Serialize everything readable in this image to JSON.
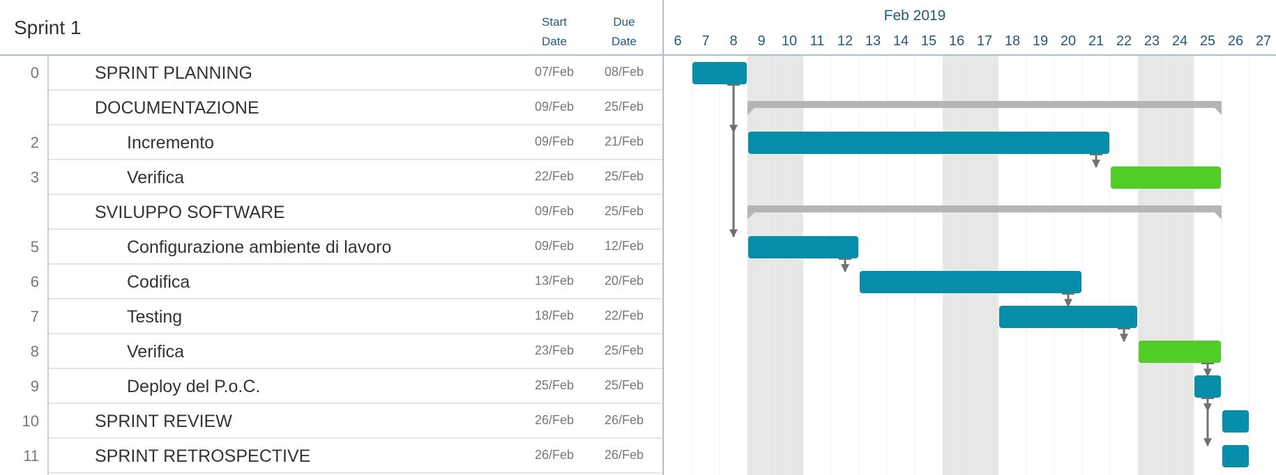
{
  "sprint": {
    "title": "Sprint 1"
  },
  "columns": {
    "start": [
      "Start",
      "Date"
    ],
    "due": [
      "Due",
      "Date"
    ]
  },
  "timeline": {
    "month_label": "Feb 2019",
    "first_day": 6,
    "last_day": 27,
    "weekend_days": [
      9,
      10,
      16,
      17,
      23,
      24
    ]
  },
  "tasks": [
    {
      "num": "0",
      "name": "SPRINT PLANNING",
      "start": "07/Feb",
      "due": "08/Feb",
      "level": 1
    },
    {
      "num": "",
      "name": "DOCUMENTAZIONE",
      "start": "09/Feb",
      "due": "25/Feb",
      "level": 1
    },
    {
      "num": "2",
      "name": "Incremento",
      "start": "09/Feb",
      "due": "21/Feb",
      "level": 2
    },
    {
      "num": "3",
      "name": "Verifica",
      "start": "22/Feb",
      "due": "25/Feb",
      "level": 2
    },
    {
      "num": "",
      "name": "SVILUPPO SOFTWARE",
      "start": "09/Feb",
      "due": "25/Feb",
      "level": 1
    },
    {
      "num": "5",
      "name": "Configurazione ambiente di lavoro",
      "start": "09/Feb",
      "due": "12/Feb",
      "level": 2
    },
    {
      "num": "6",
      "name": "Codifica",
      "start": "13/Feb",
      "due": "20/Feb",
      "level": 2
    },
    {
      "num": "7",
      "name": "Testing",
      "start": "18/Feb",
      "due": "22/Feb",
      "level": 2
    },
    {
      "num": "8",
      "name": "Verifica",
      "start": "23/Feb",
      "due": "25/Feb",
      "level": 2
    },
    {
      "num": "9",
      "name": "Deploy del P.o.C.",
      "start": "25/Feb",
      "due": "25/Feb",
      "level": 2
    },
    {
      "num": "10",
      "name": "SPRINT REVIEW",
      "start": "26/Feb",
      "due": "26/Feb",
      "level": 1
    },
    {
      "num": "11",
      "name": "SPRINT RETROSPECTIVE",
      "start": "26/Feb",
      "due": "26/Feb",
      "level": 1
    }
  ],
  "chart_data": {
    "type": "gantt",
    "categories": [
      "SPRINT PLANNING",
      "DOCUMENTAZIONE",
      "Incremento",
      "Verifica",
      "SVILUPPO SOFTWARE",
      "Configurazione ambiente di lavoro",
      "Codifica",
      "Testing",
      "Verifica",
      "Deploy del P.o.C.",
      "SPRINT REVIEW",
      "SPRINT RETROSPECTIVE"
    ],
    "bars": [
      {
        "row": 0,
        "start_day": 7,
        "end_day": 8,
        "kind": "task"
      },
      {
        "row": 1,
        "start_day": 9,
        "end_day": 25,
        "kind": "group"
      },
      {
        "row": 2,
        "start_day": 9,
        "end_day": 21,
        "kind": "task"
      },
      {
        "row": 3,
        "start_day": 22,
        "end_day": 25,
        "kind": "review"
      },
      {
        "row": 4,
        "start_day": 9,
        "end_day": 25,
        "kind": "group"
      },
      {
        "row": 5,
        "start_day": 9,
        "end_day": 12,
        "kind": "task"
      },
      {
        "row": 6,
        "start_day": 13,
        "end_day": 20,
        "kind": "task"
      },
      {
        "row": 7,
        "start_day": 18,
        "end_day": 22,
        "kind": "task"
      },
      {
        "row": 8,
        "start_day": 23,
        "end_day": 25,
        "kind": "review"
      },
      {
        "row": 9,
        "start_day": 25,
        "end_day": 25,
        "kind": "task"
      },
      {
        "row": 10,
        "start_day": 26,
        "end_day": 26,
        "kind": "task"
      },
      {
        "row": 11,
        "start_day": 26,
        "end_day": 26,
        "kind": "task"
      }
    ],
    "dependencies": [
      [
        0,
        2
      ],
      [
        0,
        5
      ],
      [
        2,
        3
      ],
      [
        5,
        6
      ],
      [
        6,
        7
      ],
      [
        7,
        8
      ],
      [
        8,
        9
      ],
      [
        9,
        10
      ],
      [
        9,
        11
      ]
    ],
    "colors": {
      "task": "#058da9",
      "review": "#52cc26",
      "group": "#b5b5b5",
      "weekend": "#e7e7e7",
      "link": "#707070",
      "day_label": "#1f5a82"
    }
  }
}
